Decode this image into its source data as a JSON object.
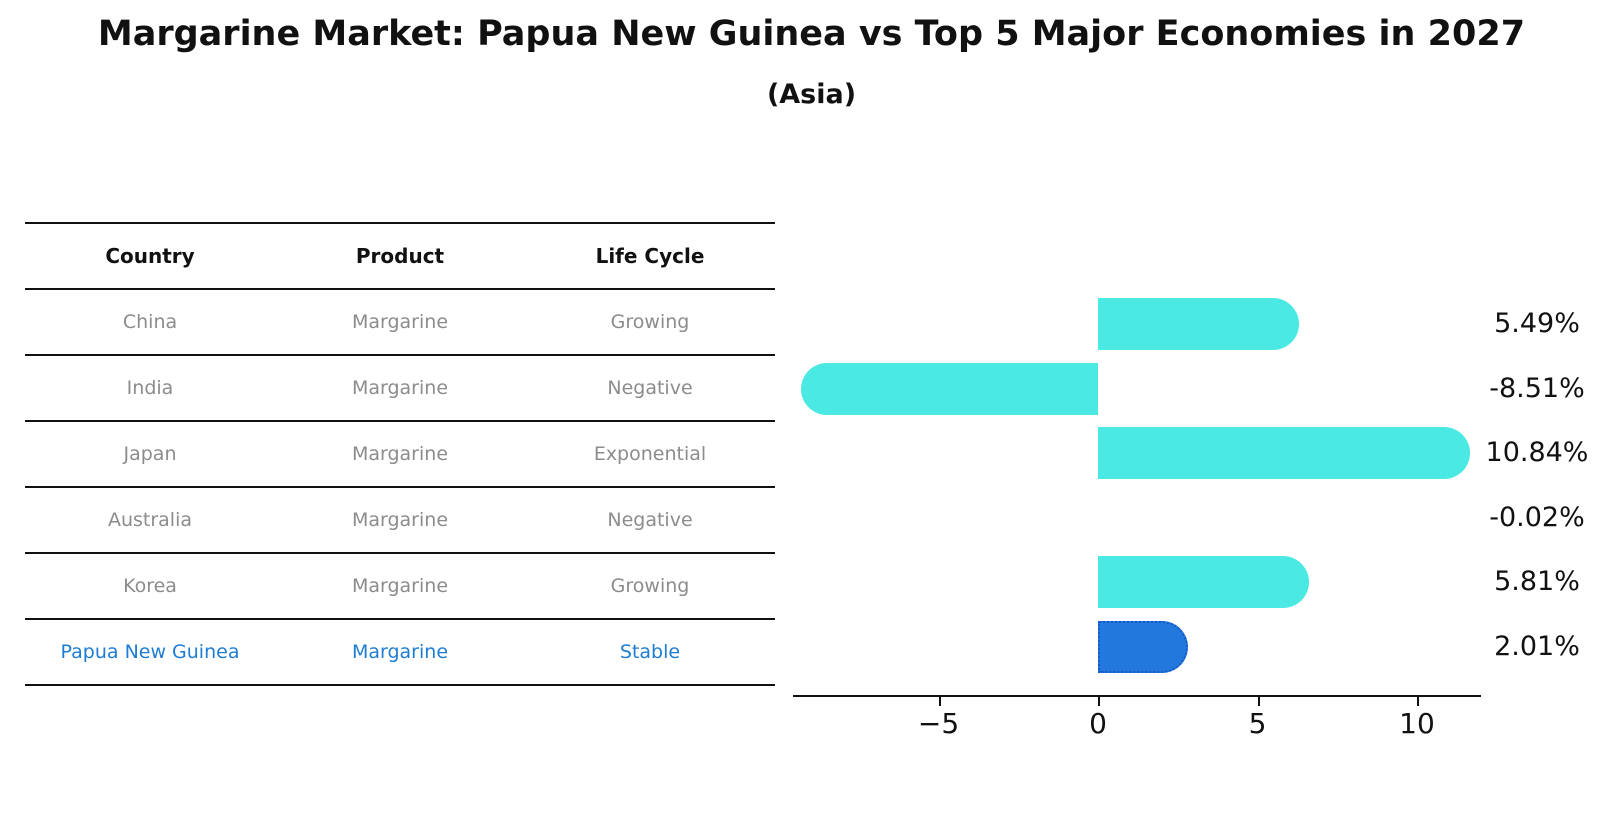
{
  "title": "Margarine Market: Papua New Guinea vs Top 5 Major Economies in 2027",
  "subtitle": "(Asia)",
  "table": {
    "headers": [
      "Country",
      "Product",
      "Life Cycle"
    ],
    "rows": [
      {
        "country": "China",
        "product": "Margarine",
        "life_cycle": "Growing",
        "highlight": false
      },
      {
        "country": "India",
        "product": "Margarine",
        "life_cycle": "Negative",
        "highlight": false
      },
      {
        "country": "Japan",
        "product": "Margarine",
        "life_cycle": "Exponential",
        "highlight": false
      },
      {
        "country": "Australia",
        "product": "Margarine",
        "life_cycle": "Negative",
        "highlight": false
      },
      {
        "country": "Korea",
        "product": "Margarine",
        "life_cycle": "Growing",
        "highlight": false
      },
      {
        "country": "Papua New Guinea",
        "product": "Margarine",
        "life_cycle": "Stable",
        "highlight": true
      }
    ]
  },
  "chart_data": {
    "type": "bar",
    "orientation": "horizontal",
    "categories": [
      "China",
      "India",
      "Japan",
      "Australia",
      "Korea",
      "Papua New Guinea"
    ],
    "values": [
      5.49,
      -8.51,
      10.84,
      -0.02,
      5.81,
      2.01
    ],
    "value_labels": [
      "5.49%",
      "-8.51%",
      "10.84%",
      "-0.02%",
      "5.81%",
      "2.01%"
    ],
    "xlabel": "",
    "ylabel": "",
    "xlim": [
      -9.5,
      12.0
    ],
    "x_tick_values": [
      -5,
      0,
      5,
      10
    ],
    "x_tick_labels": [
      "−5",
      "0",
      "5",
      "10"
    ],
    "grid": false,
    "legend": false,
    "bar_color": "#4be9e3",
    "highlight_index": 5,
    "highlight_bar_color": "#2278dc",
    "highlight_text_color": "#1e7dd2"
  }
}
